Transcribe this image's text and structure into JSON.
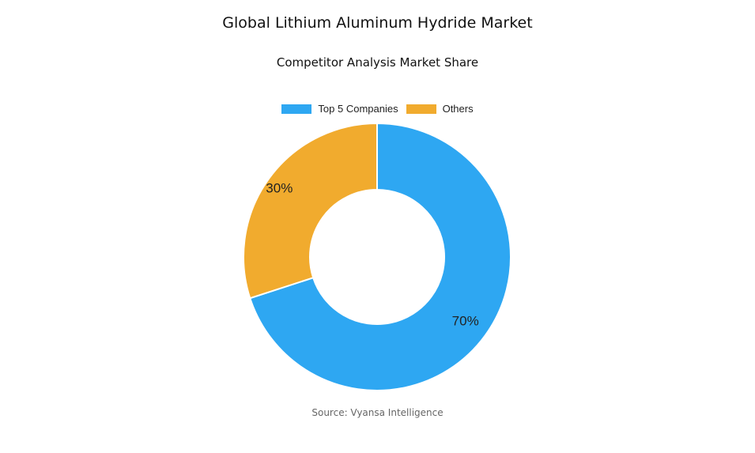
{
  "chart_data": {
    "type": "pie",
    "donut": true,
    "title": "Global Lithium Aluminum Hydride Market",
    "subtitle": "Competitor Analysis Market Share",
    "legend_position": "top",
    "series": [
      {
        "name": "Top 5 Companies",
        "value": 70,
        "label": "70%",
        "color": "#2ea7f2"
      },
      {
        "name": "Others",
        "value": 30,
        "label": "30%",
        "color": "#f1ab2e"
      }
    ]
  },
  "source": "Source: Vyansa Intelligence"
}
